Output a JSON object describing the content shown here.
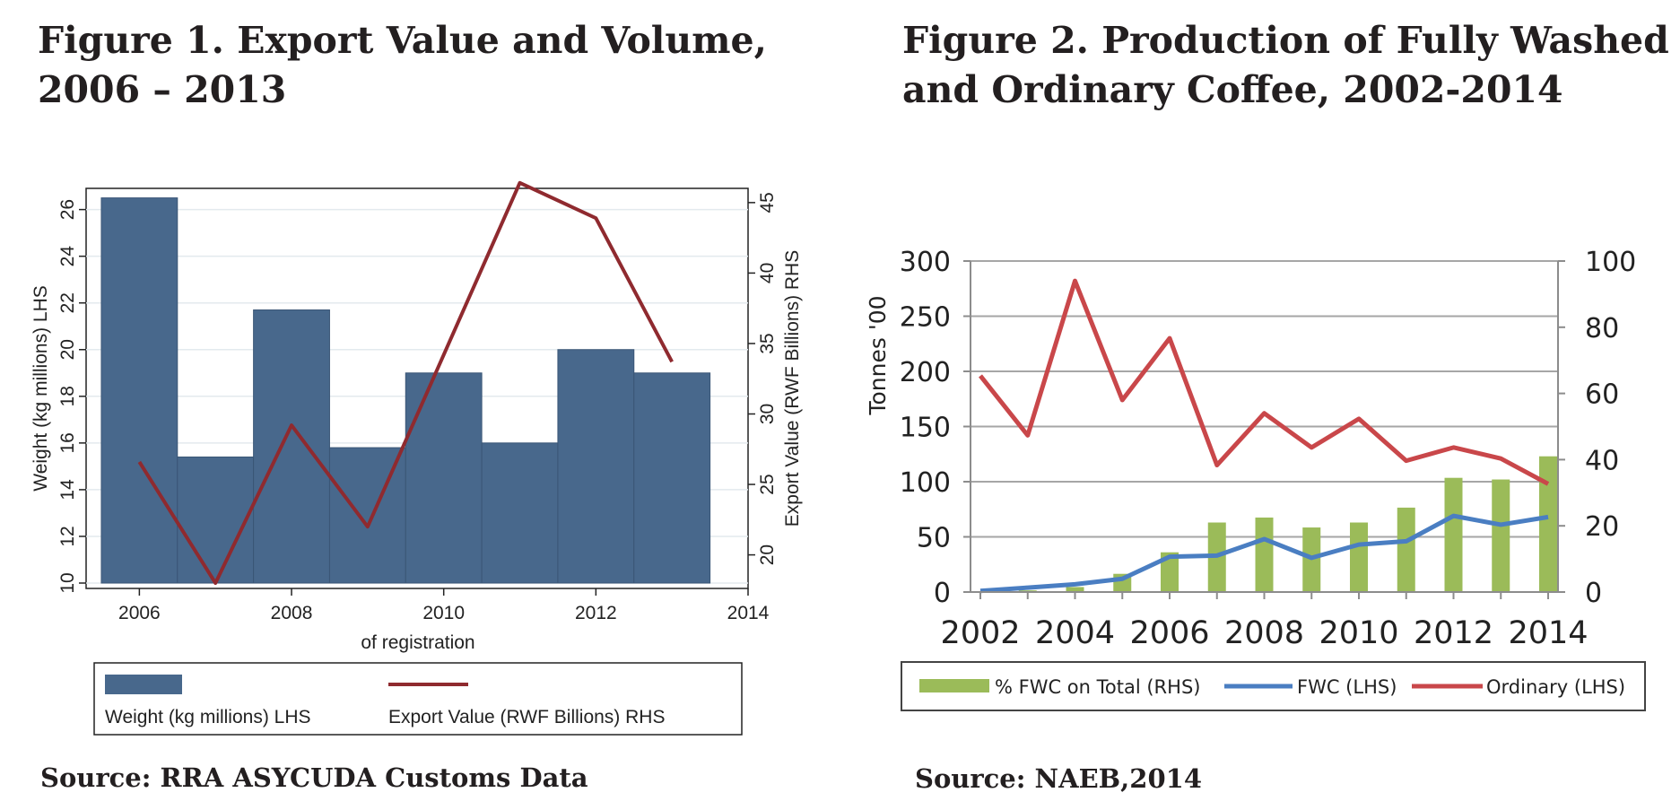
{
  "figures": {
    "fig1": {
      "title": "Figure 1. Export Value and Volume, 2006 – 2013",
      "source": "Source: RRA ASYCUDA Customs Data"
    },
    "fig2": {
      "title": "Figure 2. Production of Fully Washed and Ordinary Coffee, 2002-2014",
      "source": "Source: NAEB,2014"
    }
  },
  "chart_data": [
    {
      "id": "fig1",
      "type": "bar",
      "xlabel": "of registration",
      "x_ticks": [
        2006,
        2008,
        2010,
        2012,
        2014
      ],
      "xlim": [
        2005.3,
        2014
      ],
      "left_axis": {
        "label": "Weight (kg millions) LHS",
        "range": [
          10,
          26.6
        ],
        "ticks": [
          10,
          12,
          14,
          16,
          18,
          20,
          22,
          24,
          26
        ]
      },
      "right_axis": {
        "label": "Export Value (RWF Billions) RHS",
        "range": [
          18,
          45.5
        ],
        "ticks": [
          20,
          25,
          30,
          35,
          40,
          45
        ]
      },
      "series": [
        {
          "name": "Weight (kg millions) LHS",
          "kind": "bar",
          "axis": "left",
          "color": "#48688c",
          "x": [
            2006,
            2007,
            2008,
            2009,
            2010,
            2011,
            2012,
            2013
          ],
          "values": [
            26.5,
            15.4,
            21.7,
            15.8,
            19.0,
            16.0,
            20.0,
            19.0
          ]
        },
        {
          "name": "Export Value (RWF Billions) RHS",
          "kind": "line",
          "axis": "right",
          "color": "#8f2a2f",
          "x": [
            2006,
            2007,
            2008,
            2009,
            2010,
            2011,
            2012,
            2013
          ],
          "values": [
            26.6,
            18.0,
            29.2,
            22.0,
            34.2,
            46.4,
            43.9,
            33.7
          ]
        }
      ],
      "legend": [
        "Weight (kg millions) LHS",
        "Export Value (RWF Billions) RHS"
      ],
      "legend_position": "bottom",
      "grid": true
    },
    {
      "id": "fig2",
      "type": "bar",
      "categories": [
        "2002",
        "2003",
        "2004",
        "2005",
        "2006",
        "2007",
        "2008",
        "2009",
        "2010",
        "2011",
        "2012",
        "2013",
        "2014"
      ],
      "x_tick_labels": [
        "2002",
        "2004",
        "2006",
        "2008",
        "2010",
        "2012",
        "2014"
      ],
      "left_axis": {
        "label": "Tonnes '00",
        "range": [
          0,
          300
        ],
        "ticks": [
          0,
          50,
          100,
          150,
          200,
          250,
          300
        ]
      },
      "right_axis": {
        "label": "",
        "range": [
          0,
          100
        ],
        "ticks": [
          0,
          20,
          40,
          60,
          80,
          100
        ]
      },
      "series": [
        {
          "name": "% FWC on Total (RHS)",
          "kind": "bar",
          "axis": "right",
          "color": "#9bbb59",
          "values": [
            0,
            0.5,
            1.5,
            5.5,
            12,
            21,
            22.5,
            19.5,
            21,
            25.5,
            34.5,
            34,
            41
          ]
        },
        {
          "name": "FWC (LHS)",
          "kind": "line",
          "axis": "left",
          "color": "#4a7ec2",
          "values": [
            1,
            4,
            7,
            12,
            32,
            33,
            48,
            31,
            43,
            46,
            69,
            61,
            68
          ]
        },
        {
          "name": "Ordinary (LHS)",
          "kind": "line",
          "axis": "left",
          "color": "#c9474a",
          "values": [
            196,
            142,
            282,
            174,
            230,
            115,
            162,
            131,
            157,
            119,
            131,
            121,
            98
          ]
        }
      ],
      "legend": [
        "% FWC on Total (RHS)",
        "FWC (LHS)",
        "Ordinary (LHS)"
      ],
      "legend_position": "bottom",
      "grid": true
    }
  ]
}
